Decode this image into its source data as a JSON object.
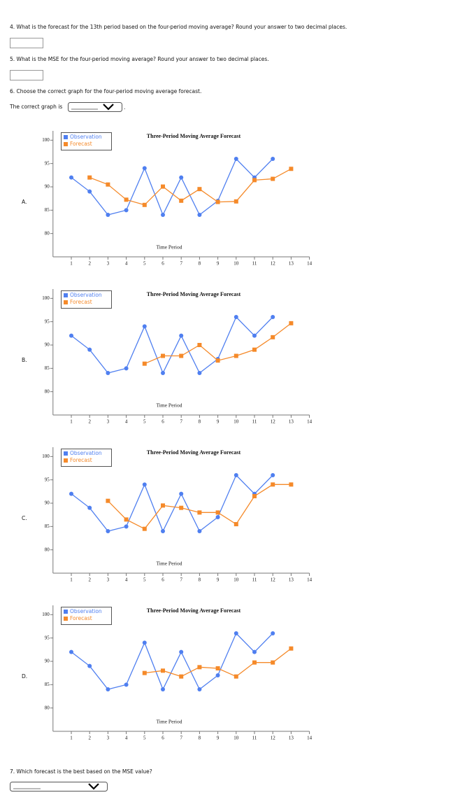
{
  "questions": [
    "4. What is the forecast for the 13th period based on the four-period moving average? Round your answer to two decimal places.",
    "5. What is the MSE for the four-period moving average? Round your answer to two decimal places.",
    "6. Choose the correct graph for the four-period moving average forecast."
  ],
  "graph_prompt": "The correct graph is",
  "graph_prompt_end": ".",
  "question_7": "7. Which forecast is the best based on the MSE value?",
  "options": [
    "A.",
    "B.",
    "C.",
    "D."
  ],
  "chart_data": [
    {
      "type": "line",
      "title": "Three-Period Moving Average Forecast",
      "xlabel": "Time Period",
      "xlim": [
        0,
        14
      ],
      "xticks": [
        1,
        2,
        3,
        4,
        5,
        6,
        7,
        8,
        9,
        10,
        11,
        12,
        13,
        14
      ],
      "ylim": [
        75,
        102
      ],
      "yticks": [
        80,
        85,
        90,
        95,
        100
      ],
      "series": [
        {
          "name": "Observation",
          "color": "#4f7ff0",
          "marker": "circle",
          "x": [
            1,
            2,
            3,
            4,
            5,
            6,
            7,
            8,
            9,
            10,
            11,
            12
          ],
          "values": [
            92,
            89,
            84,
            85,
            94,
            84,
            92,
            84,
            87,
            96,
            92,
            96
          ]
        },
        {
          "name": "Forecast",
          "color": "#f58a2a",
          "marker": "square",
          "x": [
            2,
            3,
            4,
            5,
            6,
            7,
            8,
            9,
            10,
            11,
            12,
            13
          ],
          "values": [
            92,
            90.5,
            87.25,
            86.13,
            90.06,
            87.03,
            89.52,
            86.76,
            86.88,
            91.44,
            91.72,
            93.86
          ]
        }
      ]
    },
    {
      "type": "line",
      "title": "Three-Period Moving Average Forecast",
      "xlabel": "Time Period",
      "xlim": [
        0,
        14
      ],
      "xticks": [
        1,
        2,
        3,
        4,
        5,
        6,
        7,
        8,
        9,
        10,
        11,
        12,
        13,
        14
      ],
      "ylim": [
        75,
        102
      ],
      "yticks": [
        80,
        85,
        90,
        95,
        100
      ],
      "series": [
        {
          "name": "Observation",
          "color": "#4f7ff0",
          "marker": "circle",
          "x": [
            1,
            2,
            3,
            4,
            5,
            6,
            7,
            8,
            9,
            10,
            11,
            12
          ],
          "values": [
            92,
            89,
            84,
            85,
            94,
            84,
            92,
            84,
            87,
            96,
            92,
            96
          ]
        },
        {
          "name": "Forecast",
          "color": "#f58a2a",
          "marker": "square",
          "x": [
            5,
            6,
            7,
            8,
            9,
            10,
            11,
            12,
            13
          ],
          "values": [
            86,
            87.67,
            87.67,
            90,
            86.67,
            87.67,
            89,
            91.67,
            94.67
          ]
        }
      ]
    },
    {
      "type": "line",
      "title": "Three-Period Moving Average Forecast",
      "xlabel": "Time Period",
      "xlim": [
        0,
        14
      ],
      "xticks": [
        1,
        2,
        3,
        4,
        5,
        6,
        7,
        8,
        9,
        10,
        11,
        12,
        13,
        14
      ],
      "ylim": [
        75,
        102
      ],
      "yticks": [
        80,
        85,
        90,
        95,
        100
      ],
      "series": [
        {
          "name": "Observation",
          "color": "#4f7ff0",
          "marker": "circle",
          "x": [
            1,
            2,
            3,
            4,
            5,
            6,
            7,
            8,
            9,
            10,
            11,
            12
          ],
          "values": [
            92,
            89,
            84,
            85,
            94,
            84,
            92,
            84,
            87,
            96,
            92,
            96
          ]
        },
        {
          "name": "Forecast",
          "color": "#f58a2a",
          "marker": "square",
          "x": [
            3,
            4,
            5,
            6,
            7,
            8,
            9,
            10,
            11,
            12,
            13
          ],
          "values": [
            90.5,
            86.5,
            84.5,
            89.5,
            89,
            88,
            88,
            85.5,
            91.5,
            94,
            94
          ]
        }
      ]
    },
    {
      "type": "line",
      "title": "Three-Period Moving Average Forecast",
      "xlabel": "Time Period",
      "xlim": [
        0,
        14
      ],
      "xticks": [
        1,
        2,
        3,
        4,
        5,
        6,
        7,
        8,
        9,
        10,
        11,
        12,
        13,
        14
      ],
      "ylim": [
        75,
        102
      ],
      "yticks": [
        80,
        85,
        90,
        95,
        100
      ],
      "series": [
        {
          "name": "Observation",
          "color": "#4f7ff0",
          "marker": "circle",
          "x": [
            1,
            2,
            3,
            4,
            5,
            6,
            7,
            8,
            9,
            10,
            11,
            12
          ],
          "values": [
            92,
            89,
            84,
            85,
            94,
            84,
            92,
            84,
            87,
            96,
            92,
            96
          ]
        },
        {
          "name": "Forecast",
          "color": "#f58a2a",
          "marker": "square",
          "x": [
            5,
            6,
            7,
            8,
            9,
            10,
            11,
            12,
            13
          ],
          "values": [
            87.5,
            88,
            86.75,
            88.75,
            88.5,
            86.75,
            89.75,
            89.75,
            92.75
          ]
        }
      ]
    }
  ]
}
